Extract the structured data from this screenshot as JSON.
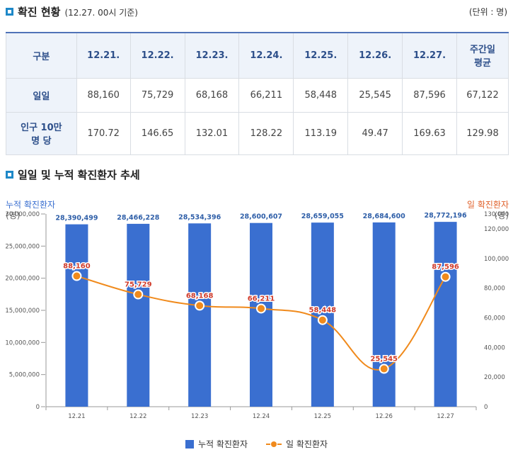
{
  "header": {
    "title": "확진 현황",
    "subtitle": "(12.27. 00시 기준)",
    "unit": "(단위 : 명)"
  },
  "table": {
    "columns": [
      "구분",
      "12.21.",
      "12.22.",
      "12.23.",
      "12.24.",
      "12.25.",
      "12.26.",
      "12.27.",
      "주간일\n평균"
    ],
    "rows": [
      {
        "label": "일일",
        "values": [
          "88,160",
          "75,729",
          "68,168",
          "66,211",
          "58,448",
          "25,545",
          "87,596",
          "67,122"
        ]
      },
      {
        "label": "인구 10만\n명 당",
        "values": [
          "170.72",
          "146.65",
          "132.01",
          "128.22",
          "113.19",
          "49.47",
          "169.63",
          "129.98"
        ]
      }
    ]
  },
  "chart_section": {
    "title": "일일 및 누적 확진환자 추세"
  },
  "chart_data": {
    "type": "bar",
    "categories": [
      "12.21",
      "12.22",
      "12.23",
      "12.24",
      "12.25",
      "12.26",
      "12.27"
    ],
    "series": [
      {
        "name": "누적 확진환자",
        "type": "bar",
        "axis": "left",
        "color": "#3a6fd0",
        "values": [
          28390499,
          28466228,
          28534396,
          28600607,
          28659055,
          28684600,
          28772196
        ],
        "labels": [
          "28,390,499",
          "28,466,228",
          "28,534,396",
          "28,600,607",
          "28,659,055",
          "28,684,600",
          "28,772,196"
        ]
      },
      {
        "name": "일 확진환자",
        "type": "line",
        "axis": "right",
        "color": "#f08a1c",
        "values": [
          88160,
          75729,
          68168,
          66211,
          58448,
          25545,
          87596
        ],
        "labels": [
          "88,160",
          "75,729",
          "68,168",
          "66,211",
          "58,448",
          "25,545",
          "87,596"
        ]
      }
    ],
    "left_axis": {
      "label": "누적 확진환자",
      "unit": "(명)",
      "color": "#3a6fd0",
      "range": [
        0,
        30000000
      ],
      "ticks": [
        0,
        5000000,
        10000000,
        15000000,
        20000000,
        25000000,
        30000000
      ],
      "tick_labels": [
        "0",
        "5,000,000",
        "10,000,000",
        "15,000,000",
        "20,000,000",
        "25,000,000",
        "30,000,000"
      ]
    },
    "right_axis": {
      "label": "일 확진환자",
      "unit": "(명)",
      "color": "#e0622c",
      "range": [
        0,
        130000
      ],
      "ticks": [
        0,
        20000,
        40000,
        60000,
        80000,
        100000,
        120000,
        130000
      ],
      "tick_labels": [
        "0",
        "20,000",
        "40,000",
        "60,000",
        "80,000",
        "100,000",
        "120,000",
        "130,000"
      ]
    },
    "legend_position": "bottom"
  }
}
